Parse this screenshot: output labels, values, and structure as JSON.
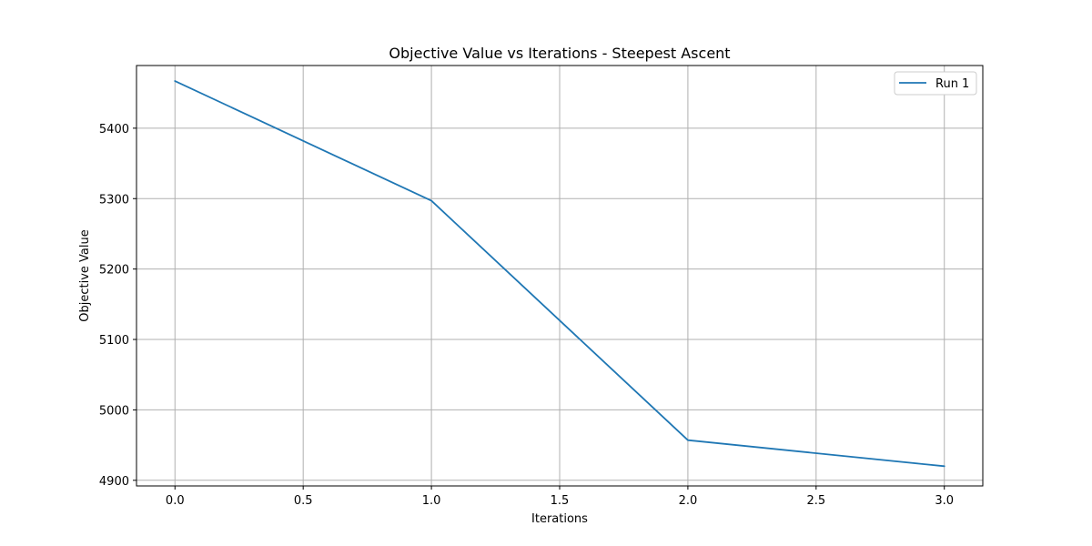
{
  "chart_data": {
    "type": "line",
    "title": "Objective Value vs Iterations - Steepest Ascent",
    "xlabel": "Iterations",
    "ylabel": "Objective Value",
    "xlim": [
      -0.15,
      3.15
    ],
    "ylim": [
      4892,
      5489
    ],
    "xticks": [
      0.0,
      0.5,
      1.0,
      1.5,
      2.0,
      2.5,
      3.0
    ],
    "xtick_labels": [
      "0.0",
      "0.5",
      "1.0",
      "1.5",
      "2.0",
      "2.5",
      "3.0"
    ],
    "yticks": [
      4900,
      5000,
      5100,
      5200,
      5300,
      5400
    ],
    "ytick_labels": [
      "4900",
      "5000",
      "5100",
      "5200",
      "5300",
      "5400"
    ],
    "grid": true,
    "legend_position": "top-right",
    "series": [
      {
        "name": "Run 1",
        "color": "#1f77b4",
        "x": [
          0,
          1,
          2,
          3
        ],
        "y": [
          5467,
          5297,
          4957,
          4920
        ]
      }
    ]
  }
}
